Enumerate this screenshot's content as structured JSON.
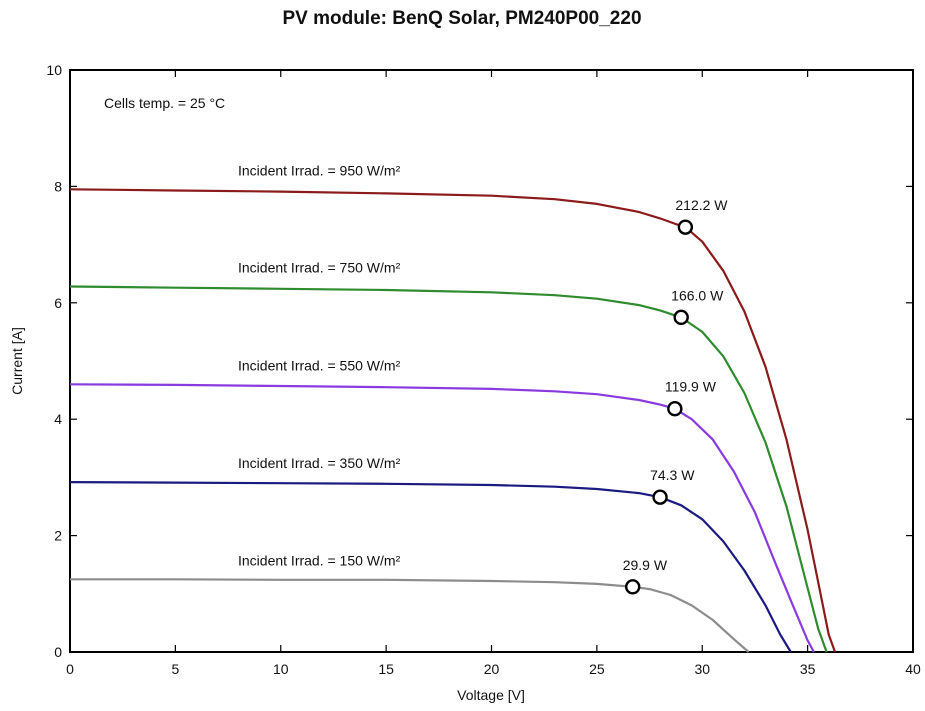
{
  "chart_data": {
    "type": "line",
    "title": "PV module:  BenQ Solar,  PM240P00_220",
    "xlabel": "Voltage [V]",
    "ylabel": "Current [A]",
    "xlim": [
      0,
      40
    ],
    "ylim": [
      0,
      10
    ],
    "xticks": [
      0,
      5,
      10,
      15,
      20,
      25,
      30,
      35,
      40
    ],
    "yticks": [
      0,
      2,
      4,
      6,
      8,
      10
    ],
    "grid": false,
    "annotation": "Cells temp.  = 25 °C",
    "series": [
      {
        "name": "Incident Irrad. = 950 W/m²",
        "color": "#8b1a1a",
        "mpp": {
          "x": 29.2,
          "y": 7.3,
          "label": "212.2 W"
        },
        "x": [
          0,
          5,
          10,
          15,
          20,
          23,
          25,
          27,
          28,
          29,
          29.2,
          30,
          31,
          32,
          33,
          34,
          35,
          35.5,
          36,
          36.3
        ],
        "y": [
          7.95,
          7.93,
          7.91,
          7.88,
          7.84,
          7.78,
          7.7,
          7.56,
          7.45,
          7.32,
          7.3,
          7.05,
          6.55,
          5.85,
          4.9,
          3.65,
          2.1,
          1.2,
          0.3,
          0
        ]
      },
      {
        "name": "Incident Irrad. = 750 W/m²",
        "color": "#2e8b2e",
        "mpp": {
          "x": 29.0,
          "y": 5.75,
          "label": "166.0 W"
        },
        "x": [
          0,
          5,
          10,
          15,
          20,
          23,
          25,
          27,
          28,
          29,
          30,
          31,
          32,
          33,
          34,
          35,
          35.5,
          35.9
        ],
        "y": [
          6.28,
          6.26,
          6.24,
          6.22,
          6.18,
          6.13,
          6.07,
          5.96,
          5.87,
          5.75,
          5.5,
          5.08,
          4.45,
          3.6,
          2.5,
          1.1,
          0.4,
          0
        ]
      },
      {
        "name": "Incident Irrad. = 550 W/m²",
        "color": "#8a3be0",
        "mpp": {
          "x": 28.7,
          "y": 4.18,
          "label": "119.9 W"
        },
        "x": [
          0,
          5,
          10,
          15,
          20,
          23,
          25,
          27,
          28,
          28.7,
          29.5,
          30.5,
          31.5,
          32.5,
          33.5,
          34.3,
          35,
          35.3
        ],
        "y": [
          4.6,
          4.59,
          4.57,
          4.55,
          4.52,
          4.48,
          4.43,
          4.33,
          4.25,
          4.18,
          4.0,
          3.65,
          3.1,
          2.4,
          1.5,
          0.8,
          0.2,
          0
        ]
      },
      {
        "name": "Incident Irrad. = 350 W/m²",
        "color": "#1a1a80",
        "mpp": {
          "x": 28.0,
          "y": 2.66,
          "label": "74.3 W"
        },
        "x": [
          0,
          5,
          10,
          15,
          20,
          23,
          25,
          27,
          28,
          29,
          30,
          31,
          32,
          33,
          33.7,
          34.2
        ],
        "y": [
          2.92,
          2.91,
          2.9,
          2.89,
          2.87,
          2.84,
          2.8,
          2.73,
          2.66,
          2.52,
          2.28,
          1.9,
          1.4,
          0.8,
          0.3,
          0
        ]
      },
      {
        "name": "Incident Irrad. = 150 W/m²",
        "color": "#8c8c8c",
        "mpp": {
          "x": 26.7,
          "y": 1.12,
          "label": "29.9 W"
        },
        "x": [
          0,
          5,
          10,
          15,
          20,
          23,
          25,
          26.7,
          27.5,
          28.5,
          29.5,
          30.5,
          31.5,
          32.2
        ],
        "y": [
          1.25,
          1.25,
          1.24,
          1.24,
          1.22,
          1.2,
          1.17,
          1.12,
          1.08,
          0.98,
          0.8,
          0.55,
          0.22,
          0
        ]
      }
    ]
  }
}
